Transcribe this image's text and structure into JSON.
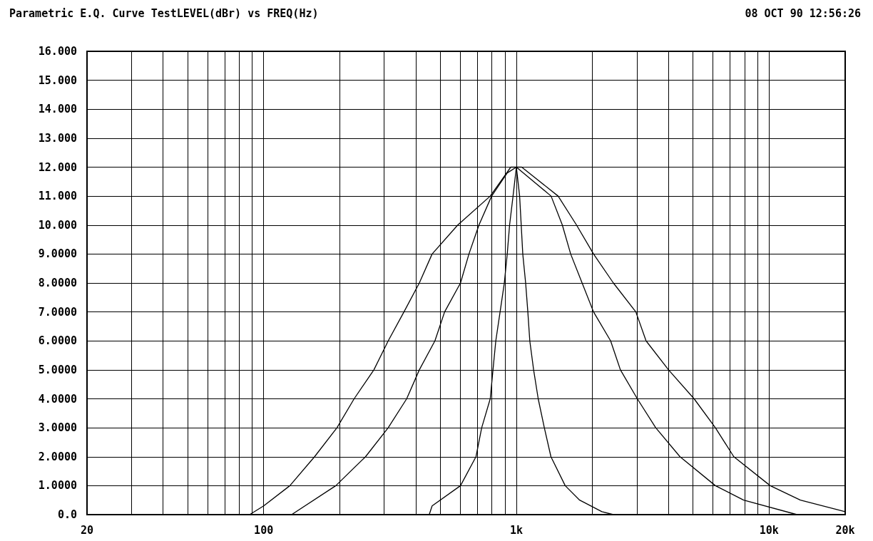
{
  "chart_data": {
    "type": "line",
    "title": "Parametric E.Q. Curve TestLEVEL(dBr) vs FREQ(Hz)",
    "annotations": [
      "08 OCT 90 12:56:26"
    ],
    "series": [
      {
        "color": "#000000",
        "x": [
          88,
          100,
          127,
          159,
          195,
          228,
          273,
          311,
          359,
          413,
          464,
          586,
          788,
          950,
          1000,
          1050,
          1463,
          1730,
          2020,
          2420,
          2970,
          3260,
          4000,
          5050,
          6130,
          7250,
          10100,
          13300,
          20000
        ],
        "values": [
          0,
          0.3,
          1,
          2,
          3,
          4,
          5,
          6,
          7,
          8,
          9,
          10,
          11,
          12,
          12,
          12,
          11,
          10,
          9,
          8,
          7,
          6,
          5,
          4,
          3,
          2,
          1,
          0.5,
          0.1
        ]
      },
      {
        "color": "#000000",
        "x": [
          129,
          193,
          253,
          311,
          368,
          413,
          476,
          520,
          601,
          649,
          711,
          798,
          920,
          1000,
          1372,
          1520,
          1640,
          1820,
          2020,
          2360,
          2580,
          3010,
          3560,
          4440,
          6130,
          7930,
          12900
        ],
        "values": [
          0,
          1,
          2,
          3,
          4,
          5,
          6,
          7,
          8,
          9,
          10,
          11,
          11.8,
          12,
          11,
          10,
          9,
          8,
          7,
          6,
          5,
          4,
          3,
          2,
          1,
          0.5,
          0
        ]
      },
      {
        "color": "#000000",
        "x": [
          452,
          464,
          601,
          692,
          729,
          788,
          808,
          829,
          862,
          896,
          920,
          940,
          970,
          1000,
          1030,
          1045,
          1060,
          1088,
          1110,
          1130,
          1170,
          1220,
          1290,
          1370,
          1560,
          1780,
          2180,
          2420
        ],
        "values": [
          0,
          0.3,
          1,
          2,
          3,
          4,
          5,
          6,
          7,
          8,
          9,
          10,
          11,
          12,
          11,
          10,
          9,
          8,
          7,
          6,
          5,
          4,
          3,
          2,
          1,
          0.5,
          0.1,
          0
        ]
      }
    ],
    "log": "x",
    "xlim": [
      20,
      20000
    ],
    "xticks": [
      {
        "value": 20,
        "label": "20"
      },
      {
        "value": 30,
        "label": null
      },
      {
        "value": 40,
        "label": null
      },
      {
        "value": 50,
        "label": null
      },
      {
        "value": 60,
        "label": null
      },
      {
        "value": 70,
        "label": null
      },
      {
        "value": 80,
        "label": null
      },
      {
        "value": 90,
        "label": null
      },
      {
        "value": 100,
        "label": "100"
      },
      {
        "value": 200,
        "label": null
      },
      {
        "value": 300,
        "label": null
      },
      {
        "value": 400,
        "label": null
      },
      {
        "value": 500,
        "label": null
      },
      {
        "value": 600,
        "label": null
      },
      {
        "value": 700,
        "label": null
      },
      {
        "value": 800,
        "label": null
      },
      {
        "value": 900,
        "label": null
      },
      {
        "value": 1000,
        "label": "1k"
      },
      {
        "value": 2000,
        "label": null
      },
      {
        "value": 3000,
        "label": null
      },
      {
        "value": 4000,
        "label": null
      },
      {
        "value": 5000,
        "label": null
      },
      {
        "value": 6000,
        "label": null
      },
      {
        "value": 7000,
        "label": null
      },
      {
        "value": 8000,
        "label": null
      },
      {
        "value": 9000,
        "label": null
      },
      {
        "value": 10000,
        "label": "10k"
      },
      {
        "value": 20000,
        "label": "20k"
      }
    ],
    "ylim": [
      0,
      16
    ],
    "yticks": [
      {
        "value": 0,
        "label": "0.0"
      },
      {
        "value": 1,
        "label": "1.0000"
      },
      {
        "value": 2,
        "label": "2.0000"
      },
      {
        "value": 3,
        "label": "3.0000"
      },
      {
        "value": 4,
        "label": "4.0000"
      },
      {
        "value": 5,
        "label": "5.0000"
      },
      {
        "value": 6,
        "label": "6.0000"
      },
      {
        "value": 7,
        "label": "7.0000"
      },
      {
        "value": 8,
        "label": "8.0000"
      },
      {
        "value": 9,
        "label": "9.0000"
      },
      {
        "value": 10,
        "label": "10.000"
      },
      {
        "value": 11,
        "label": "11.000"
      },
      {
        "value": 12,
        "label": "12.000"
      },
      {
        "value": 13,
        "label": "13.000"
      },
      {
        "value": 14,
        "label": "14.000"
      },
      {
        "value": 15,
        "label": "15.000"
      },
      {
        "value": 16,
        "label": "16.000"
      }
    ],
    "grid": true,
    "marker": "none",
    "line_style": "solid"
  }
}
